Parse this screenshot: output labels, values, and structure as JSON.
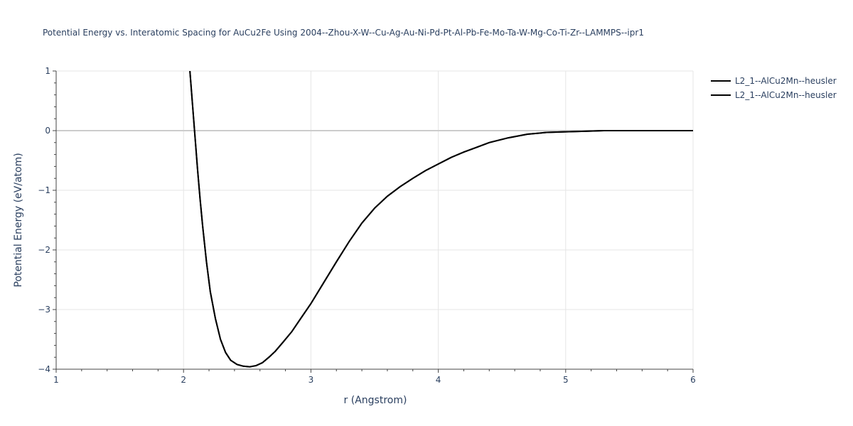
{
  "chart_data": {
    "type": "line",
    "title": "Potential Energy vs. Interatomic Spacing for AuCu2Fe Using 2004--Zhou-X-W--Cu-Ag-Au-Ni-Pd-Pt-Al-Pb-Fe-Mo-Ta-W-Mg-Co-Ti-Zr--LAMMPS--ipr1",
    "xlabel": "r (Angstrom)",
    "ylabel": "Potential Energy (eV/atom)",
    "xlim": [
      1,
      6
    ],
    "ylim": [
      -4,
      1
    ],
    "x_ticks": [
      1,
      2,
      3,
      4,
      5,
      6
    ],
    "y_ticks": [
      1,
      0,
      -1,
      -2,
      -3,
      -4
    ],
    "y_tick_labels": [
      "1",
      "0",
      "−1",
      "−2",
      "−3",
      "−4"
    ],
    "grid": true,
    "legend_position": "top-right",
    "colors": {
      "line": "#000000",
      "grid": "#e5e5e5",
      "zeroline": "#cccccc",
      "text": "#2a3f5f",
      "axis": "#444444"
    },
    "series": [
      {
        "name": "L2_1--AlCu2Mn--heusler",
        "x": [
          2.05,
          2.07,
          2.09,
          2.11,
          2.13,
          2.15,
          2.18,
          2.21,
          2.25,
          2.29,
          2.33,
          2.37,
          2.42,
          2.47,
          2.52,
          2.57,
          2.62,
          2.67,
          2.72,
          2.78,
          2.85,
          2.92,
          3.0,
          3.1,
          3.2,
          3.3,
          3.4,
          3.5,
          3.6,
          3.7,
          3.8,
          3.9,
          4.0,
          4.1,
          4.2,
          4.3,
          4.4,
          4.55,
          4.7,
          4.85,
          5.0,
          5.15,
          5.3,
          5.5,
          5.75,
          6.0
        ],
        "y": [
          1.0,
          0.45,
          -0.1,
          -0.65,
          -1.15,
          -1.6,
          -2.2,
          -2.7,
          -3.15,
          -3.5,
          -3.72,
          -3.85,
          -3.92,
          -3.95,
          -3.96,
          -3.94,
          -3.89,
          -3.8,
          -3.7,
          -3.55,
          -3.37,
          -3.15,
          -2.9,
          -2.55,
          -2.2,
          -1.86,
          -1.55,
          -1.3,
          -1.1,
          -0.94,
          -0.8,
          -0.67,
          -0.56,
          -0.45,
          -0.36,
          -0.28,
          -0.2,
          -0.12,
          -0.06,
          -0.03,
          -0.02,
          -0.01,
          0.0,
          0.0,
          0.0,
          0.0
        ]
      },
      {
        "name": "L2_1--AlCu2Mn--heusler",
        "x": [
          2.05,
          2.07,
          2.09,
          2.11,
          2.13,
          2.15,
          2.18,
          2.21,
          2.25,
          2.29,
          2.33,
          2.37,
          2.42,
          2.47,
          2.52,
          2.57,
          2.62,
          2.67,
          2.72,
          2.78,
          2.85,
          2.92,
          3.0,
          3.1,
          3.2,
          3.3,
          3.4,
          3.5,
          3.6,
          3.7,
          3.8,
          3.9,
          4.0,
          4.1,
          4.2,
          4.3,
          4.4,
          4.55,
          4.7,
          4.85,
          5.0,
          5.15,
          5.3,
          5.5,
          5.75,
          6.0
        ],
        "y": [
          1.0,
          0.45,
          -0.1,
          -0.65,
          -1.15,
          -1.6,
          -2.2,
          -2.7,
          -3.15,
          -3.5,
          -3.72,
          -3.85,
          -3.92,
          -3.95,
          -3.96,
          -3.94,
          -3.89,
          -3.8,
          -3.7,
          -3.55,
          -3.37,
          -3.15,
          -2.9,
          -2.55,
          -2.2,
          -1.86,
          -1.55,
          -1.3,
          -1.1,
          -0.94,
          -0.8,
          -0.67,
          -0.56,
          -0.45,
          -0.36,
          -0.28,
          -0.2,
          -0.12,
          -0.06,
          -0.03,
          -0.02,
          -0.01,
          0.0,
          0.0,
          0.0,
          0.0
        ]
      }
    ]
  }
}
